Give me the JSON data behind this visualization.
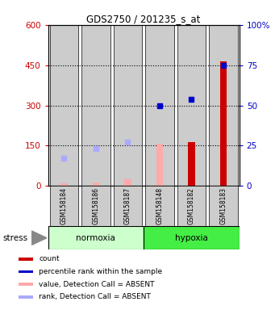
{
  "title": "GDS2750 / 201235_s_at",
  "samples": [
    "GSM158184",
    "GSM158186",
    "GSM158187",
    "GSM158148",
    "GSM158182",
    "GSM158183"
  ],
  "normoxia_color": "#ccffcc",
  "hypoxia_color": "#44ee44",
  "bar_bg_color": "#cccccc",
  "ylim_left": [
    0,
    600
  ],
  "ylim_right": [
    0,
    100
  ],
  "yticks_left": [
    0,
    150,
    300,
    450,
    600
  ],
  "ytick_labels_left": [
    "0",
    "150",
    "300",
    "450",
    "600"
  ],
  "yticks_right": [
    0,
    25,
    50,
    75,
    100
  ],
  "ytick_labels_right": [
    "0",
    "25",
    "50",
    "75",
    "100%"
  ],
  "count_values": [
    null,
    null,
    null,
    null,
    163,
    465
  ],
  "count_color": "#cc0000",
  "rank_values_right": [
    null,
    null,
    null,
    50,
    54,
    75
  ],
  "rank_color": "#0000cc",
  "absent_value_values": [
    10,
    12,
    25,
    157,
    null,
    null
  ],
  "absent_value_color": "#ffaaaa",
  "absent_rank_values_right": [
    17,
    23,
    27,
    null,
    null,
    null
  ],
  "absent_rank_color": "#aaaaff",
  "left_ylabel_color": "#cc0000",
  "right_ylabel_color": "#0000cc"
}
